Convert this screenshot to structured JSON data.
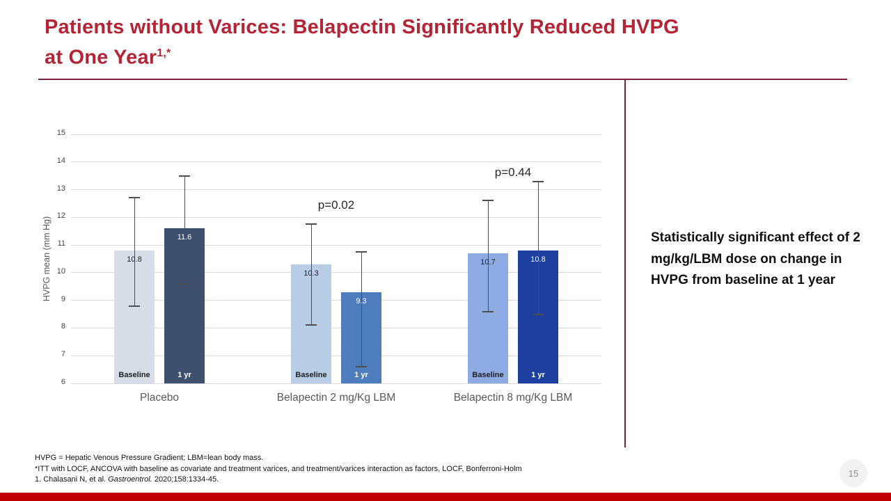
{
  "slide": {
    "title_line1": "Patients without Varices: Belapectin Significantly Reduced HVPG",
    "title_line2": "at One Year",
    "title_superscript": "1,*",
    "callout": "Statistically significant effect of 2 mg/kg/LBM dose on change in HVPG from baseline at 1 year",
    "page_number": "15",
    "footnotes": {
      "line1": "HVPG = Hepatic Venous Pressure Gradient; LBM=lean body mass.",
      "line2": "*ITT with LOCF, ANCOVA with baseline as covariate and treatment varices, and treatment/varices interaction as factors, LOCF, Bonferroni-Holm",
      "citation_prefix": "1. Chalasani N, et al. ",
      "citation_italic": "Gastroentrol.",
      "citation_suffix": " 2020;158:1334-45."
    },
    "colors": {
      "title": "#b52334",
      "divider": "#7c1e40",
      "bottom_bar": "#c00000",
      "page_circle_bg": "#f2f2f2",
      "page_circle_text": "#8c8c8c"
    }
  },
  "chart_data": {
    "type": "bar",
    "title": "",
    "xlabel": "",
    "ylabel": "HVPG mean (mm Hg)",
    "ylim": [
      6,
      15
    ],
    "ytick_step": 1,
    "grid": true,
    "legend_position": "none",
    "categories": [
      "Placebo",
      "Belapectin 2 mg/Kg LBM",
      "Belapectin 8 mg/Kg LBM"
    ],
    "series": [
      {
        "name": "Baseline",
        "values": [
          10.8,
          10.3,
          10.7
        ],
        "error_low": [
          8.8,
          8.1,
          8.6
        ],
        "error_high": [
          12.7,
          11.75,
          12.6
        ],
        "colors": [
          "#d7dde7",
          "#b9cde7",
          "#8fabe3"
        ],
        "label_color": "#1f1f1f"
      },
      {
        "name": "1 yr",
        "values": [
          11.6,
          9.3,
          10.8
        ],
        "error_low": [
          9.6,
          6.6,
          8.5
        ],
        "error_high": [
          13.5,
          10.75,
          13.3
        ],
        "colors": [
          "#3e506e",
          "#4e7dbd",
          "#1e3fa0"
        ],
        "label_color": "#ffffff"
      }
    ],
    "annotations": [
      {
        "text": "p=0.02",
        "category_index": 1,
        "y": 12.4
      },
      {
        "text": "p=0.44",
        "category_index": 2,
        "y": 13.6
      }
    ]
  }
}
